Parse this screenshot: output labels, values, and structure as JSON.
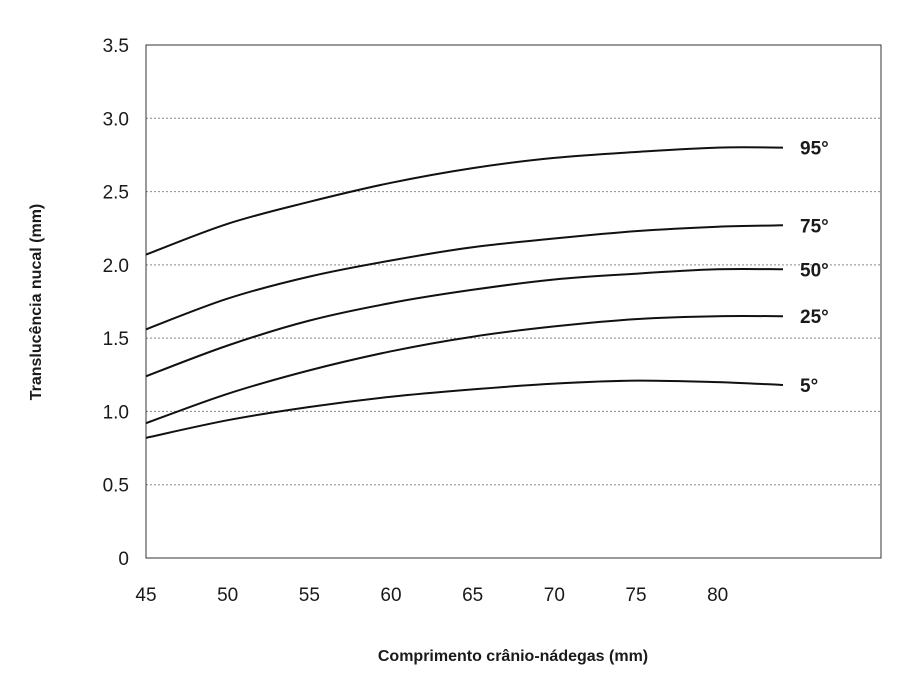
{
  "chart_data": {
    "type": "line",
    "title": "",
    "xlabel": "Comprimento crânio-nádegas (mm)",
    "ylabel": "Translucência nucal (mm)",
    "xlim": [
      45,
      90
    ],
    "ylim": [
      0,
      3.5
    ],
    "x_ticks": [
      45,
      50,
      55,
      60,
      65,
      70,
      75,
      80
    ],
    "x_tick_labels": [
      "45",
      "50",
      "55",
      "60",
      "65",
      "70",
      "75",
      "80"
    ],
    "y_ticks": [
      0,
      0.5,
      1.0,
      1.5,
      2.0,
      2.5,
      3.0,
      3.5
    ],
    "y_tick_labels": [
      "0",
      "0.5",
      "1.0",
      "1.5",
      "2.0",
      "2.5",
      "3.0",
      "3.5"
    ],
    "grid": "horizontal dotted",
    "line_color": "#111111",
    "series": [
      {
        "name": "95°",
        "x": [
          45,
          50,
          55,
          60,
          65,
          70,
          75,
          80,
          84
        ],
        "y": [
          2.07,
          2.28,
          2.43,
          2.56,
          2.66,
          2.73,
          2.77,
          2.8,
          2.8
        ]
      },
      {
        "name": "75°",
        "x": [
          45,
          50,
          55,
          60,
          65,
          70,
          75,
          80,
          84
        ],
        "y": [
          1.56,
          1.77,
          1.92,
          2.03,
          2.12,
          2.18,
          2.23,
          2.26,
          2.27
        ]
      },
      {
        "name": "50°",
        "x": [
          45,
          50,
          55,
          60,
          65,
          70,
          75,
          80,
          84
        ],
        "y": [
          1.24,
          1.45,
          1.62,
          1.74,
          1.83,
          1.9,
          1.94,
          1.97,
          1.97
        ]
      },
      {
        "name": "25°",
        "x": [
          45,
          50,
          55,
          60,
          65,
          70,
          75,
          80,
          84
        ],
        "y": [
          0.92,
          1.12,
          1.28,
          1.41,
          1.51,
          1.58,
          1.63,
          1.65,
          1.65
        ]
      },
      {
        "name": "5°",
        "x": [
          45,
          50,
          55,
          60,
          65,
          70,
          75,
          80,
          84
        ],
        "y": [
          0.82,
          0.94,
          1.03,
          1.1,
          1.15,
          1.19,
          1.21,
          1.2,
          1.18
        ]
      }
    ]
  }
}
